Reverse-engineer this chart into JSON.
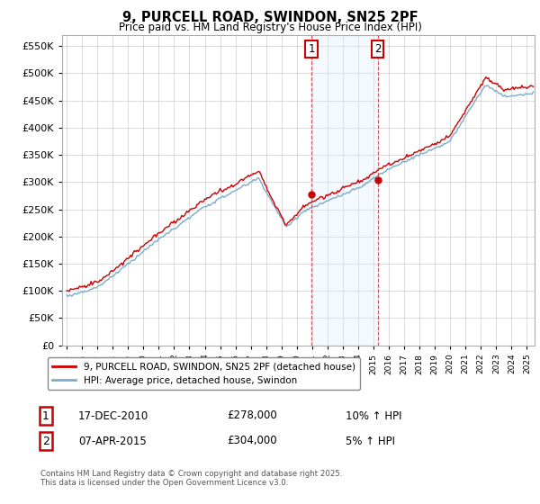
{
  "title": "9, PURCELL ROAD, SWINDON, SN25 2PF",
  "subtitle": "Price paid vs. HM Land Registry's House Price Index (HPI)",
  "legend_line1": "9, PURCELL ROAD, SWINDON, SN25 2PF (detached house)",
  "legend_line2": "HPI: Average price, detached house, Swindon",
  "annotation1_date": "17-DEC-2010",
  "annotation1_price": "£278,000",
  "annotation1_hpi": "10% ↑ HPI",
  "annotation1_year": 2010.96,
  "annotation1_value": 278000,
  "annotation2_date": "07-APR-2015",
  "annotation2_price": "£304,000",
  "annotation2_hpi": "5% ↑ HPI",
  "annotation2_year": 2015.27,
  "annotation2_value": 304000,
  "footnote": "Contains HM Land Registry data © Crown copyright and database right 2025.\nThis data is licensed under the Open Government Licence v3.0.",
  "line_color_red": "#cc0000",
  "line_color_blue": "#7aadcc",
  "annotation_color": "#cc0000",
  "vline_color": "#cc4444",
  "span_color": "#ddeeff",
  "ylim": [
    0,
    570000
  ],
  "yticks": [
    0,
    50000,
    100000,
    150000,
    200000,
    250000,
    300000,
    350000,
    400000,
    450000,
    500000,
    550000
  ],
  "xlim_start": 1994.7,
  "xlim_end": 2025.5
}
